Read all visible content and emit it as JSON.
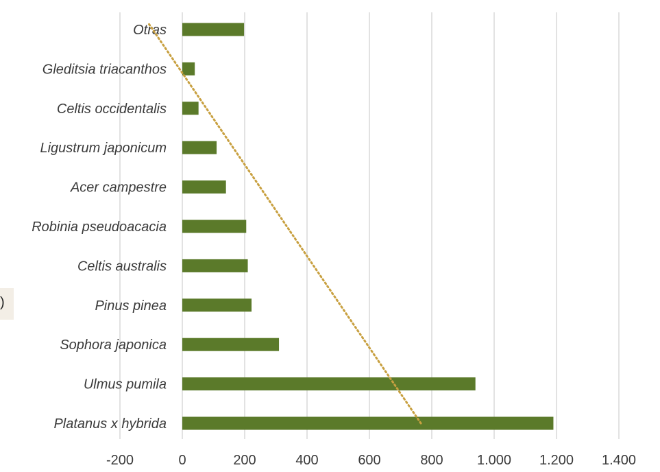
{
  "chart_data": {
    "type": "bar",
    "orientation": "horizontal",
    "categories": [
      "Platanus x hybrida",
      "Ulmus pumila",
      "Sophora japonica",
      "Pinus pinea",
      "Celtis australis",
      "Robinia pseudoacacia",
      "Acer campestre",
      "Ligustrum japonicum",
      "Celtis occidentalis",
      "Gleditsia triacanthos",
      "Otras"
    ],
    "values": [
      1190,
      940,
      310,
      222,
      210,
      205,
      140,
      110,
      52,
      40,
      198
    ],
    "xlim": [
      -200,
      1400
    ],
    "xticks": [
      -200,
      0,
      200,
      400,
      600,
      800,
      1000,
      1200,
      1400
    ],
    "xtick_labels": [
      "-200",
      "0",
      "200",
      "400",
      "600",
      "800",
      "1.000",
      "1.200",
      "1.400"
    ],
    "grid": true,
    "trendline": {
      "type": "linear",
      "style": "dotted",
      "start": {
        "category": "Platanus x hybrida",
        "value": 765
      },
      "end": {
        "category": "Otras",
        "value": -110
      }
    },
    "legend_fragment": ")",
    "colors": {
      "bar": "#5b7a2a",
      "trendline": "#c8a040",
      "grid": "#d9d9d9"
    }
  }
}
